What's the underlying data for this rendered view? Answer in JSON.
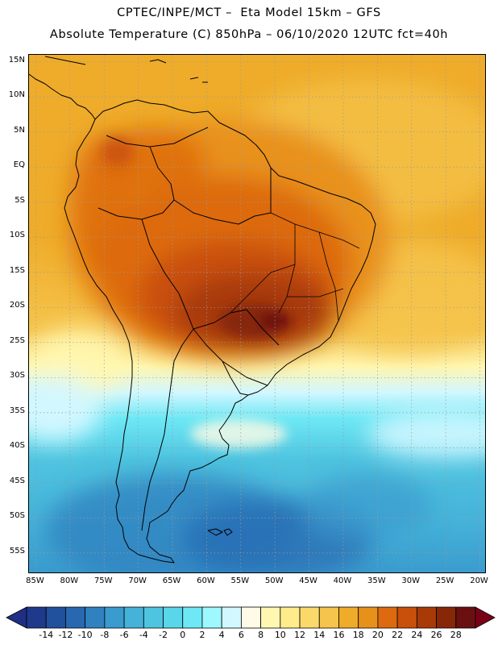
{
  "header": {
    "title_line1": "CPTEC/INPE/MCT –  Eta Model 15km – GFS",
    "title_line2": "Absolute Temperature (C) 850hPa – 06/10/2020 12UTC fct=40h"
  },
  "map": {
    "region": "South America",
    "projection": "cylindrical",
    "lon_range": [
      -86,
      -19
    ],
    "lat_range": [
      16,
      -58
    ],
    "lat_labels": [
      "15N",
      "10N",
      "5N",
      "EQ",
      "5S",
      "10S",
      "15S",
      "20S",
      "25S",
      "30S",
      "35S",
      "40S",
      "45S",
      "50S",
      "55S"
    ],
    "lat_values": [
      15,
      10,
      5,
      0,
      -5,
      -10,
      -15,
      -20,
      -25,
      -30,
      -35,
      -40,
      -45,
      -50,
      -55
    ],
    "lon_labels": [
      "85W",
      "80W",
      "75W",
      "70W",
      "65W",
      "60W",
      "55W",
      "50W",
      "45W",
      "40W",
      "35W",
      "30W",
      "25W",
      "20W"
    ],
    "lon_values": [
      -85,
      -80,
      -75,
      -70,
      -65,
      -60,
      -55,
      -50,
      -45,
      -40,
      -35,
      -30,
      -25,
      -20
    ],
    "grid": "dotted",
    "coastline_color": "#000000"
  },
  "colorbar": {
    "labels": [
      "-14",
      "-12",
      "-10",
      "-8",
      "-6",
      "-4",
      "-2",
      "0",
      "2",
      "4",
      "6",
      "8",
      "10",
      "12",
      "14",
      "16",
      "18",
      "20",
      "22",
      "24",
      "26",
      "28"
    ],
    "colors": [
      "#1f3a8a",
      "#21509d",
      "#2868b0",
      "#2f82bf",
      "#3a9bce",
      "#45b2d9",
      "#4fc4e0",
      "#5ad6ea",
      "#6ee8f5",
      "#9ef8ff",
      "#d2f7ff",
      "#fffbe6",
      "#fff7b0",
      "#ffec8a",
      "#fbd86a",
      "#f5c44c",
      "#efac2a",
      "#e8911a",
      "#dd6a0e",
      "#c9500a",
      "#a83a08",
      "#862808",
      "#6a1010"
    ],
    "under_color": "#1e2f85",
    "over_color": "#7a0016"
  }
}
